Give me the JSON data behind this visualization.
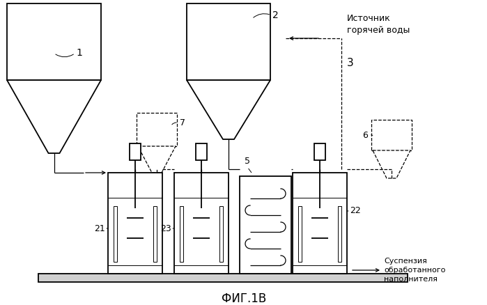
{
  "title": "ФИГ.1В",
  "bg_color": "#ffffff",
  "label_1": "1",
  "label_2": "2",
  "label_3": "3",
  "label_5": "5",
  "label_6": "6",
  "label_7": "7",
  "label_21": "21",
  "label_22": "22",
  "label_23": "23",
  "text_source": "Источник\nгорячей воды",
  "text_suspension": "Суспензия\nобработанного\nнаполнителя"
}
